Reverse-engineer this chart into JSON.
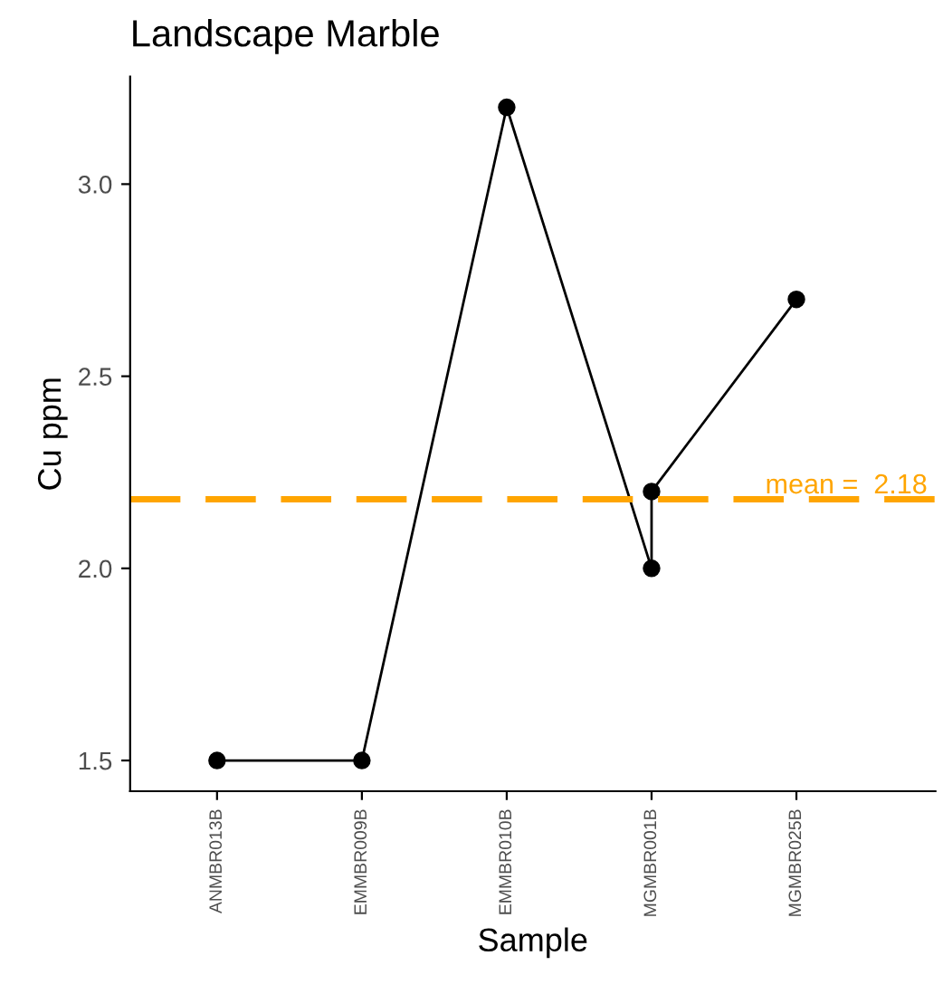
{
  "chart_data": {
    "type": "line",
    "title": "Landscape Marble",
    "xlabel": "Sample",
    "ylabel": "Cu ppm",
    "categories": [
      "ANMBR013B",
      "EMMBR009B",
      "EMMBR010B",
      "MGMBR001B",
      "MGMBR025B"
    ],
    "series": [
      {
        "color": "#000000",
        "x": [
          "ANMBR013B",
          "EMMBR009B",
          "EMMBR010B",
          "MGMBR001B",
          "MGMBR001B",
          "MGMBR025B"
        ],
        "values": [
          1.5,
          1.5,
          3.2,
          2.0,
          2.2,
          2.7
        ]
      }
    ],
    "ylim": [
      1.42,
      3.28
    ],
    "yticks": [
      {
        "value": 1.5,
        "label": "1.5"
      },
      {
        "value": 2.0,
        "label": "2.0"
      },
      {
        "value": 2.5,
        "label": "2.5"
      },
      {
        "value": 3.0,
        "label": "3.0"
      }
    ],
    "ref_lines": [
      {
        "axis": "y",
        "value": 2.18,
        "label": "mean =  2.18",
        "color": "#ffa500",
        "line_style": "dashed"
      }
    ],
    "marker": "circle",
    "line_style": "solid",
    "grid": false,
    "legend": false
  }
}
